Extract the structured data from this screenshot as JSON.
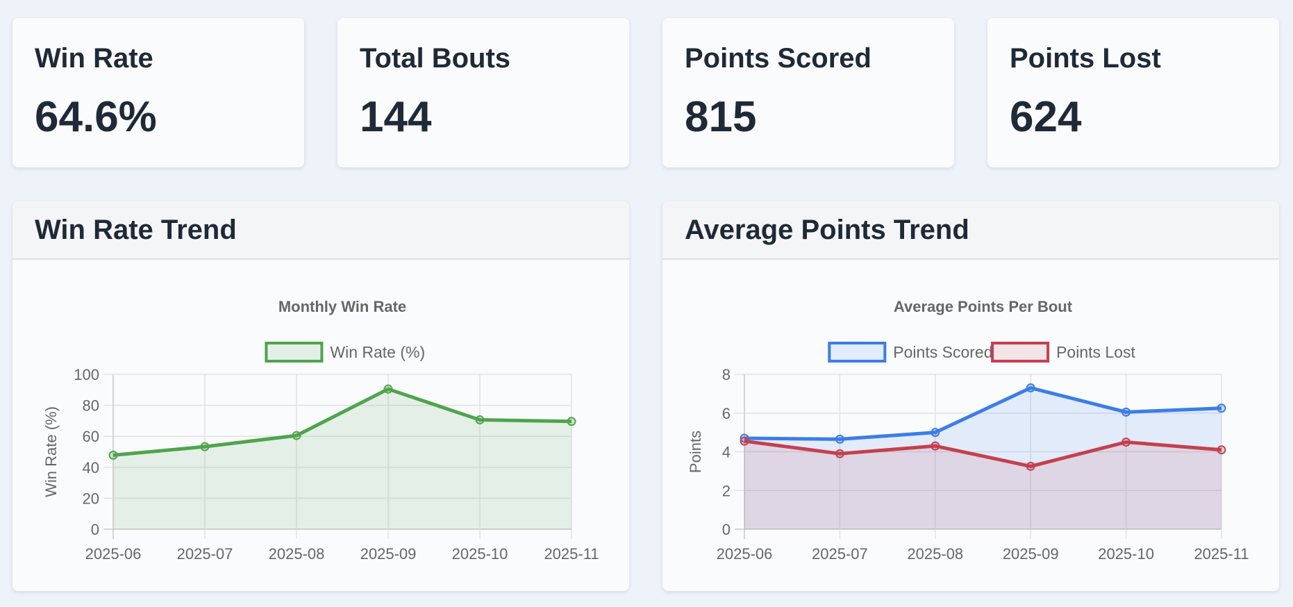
{
  "stats": [
    {
      "label": "Win Rate",
      "value": "64.6%"
    },
    {
      "label": "Total Bouts",
      "value": "144"
    },
    {
      "label": "Points Scored",
      "value": "815"
    },
    {
      "label": "Points Lost",
      "value": "624"
    }
  ],
  "panels": {
    "win_rate": {
      "header": "Win Rate Trend"
    },
    "avg_points": {
      "header": "Average Points Trend"
    }
  },
  "chart_data": [
    {
      "type": "area",
      "title": "Monthly Win Rate",
      "xlabel": "",
      "ylabel": "Win Rate (%)",
      "categories": [
        "2025-06",
        "2025-07",
        "2025-08",
        "2025-09",
        "2025-10",
        "2025-11"
      ],
      "ylim": [
        0,
        100
      ],
      "yticks": [
        0,
        20,
        40,
        60,
        80,
        100
      ],
      "grid": true,
      "legend": "top-center",
      "series": [
        {
          "name": "Win Rate (%)",
          "values": [
            47.8,
            53.3,
            60.5,
            90.5,
            70.6,
            69.6
          ],
          "color": "#4ea54b",
          "fill": "rgba(78,165,75,0.12)"
        }
      ]
    },
    {
      "type": "area",
      "title": "Average Points Per Bout",
      "xlabel": "",
      "ylabel": "Points",
      "categories": [
        "2025-06",
        "2025-07",
        "2025-08",
        "2025-09",
        "2025-10",
        "2025-11"
      ],
      "ylim": [
        0,
        8
      ],
      "yticks": [
        0,
        2,
        4,
        6,
        8
      ],
      "grid": true,
      "legend": "top-center",
      "series": [
        {
          "name": "Points Scored",
          "values": [
            4.7,
            4.65,
            5.0,
            7.3,
            6.05,
            6.25
          ],
          "color": "#3b7de9",
          "fill": "rgba(59,125,233,0.12)"
        },
        {
          "name": "Points Lost",
          "values": [
            4.55,
            3.9,
            4.3,
            3.25,
            4.5,
            4.1
          ],
          "color": "#c5404e",
          "fill": "rgba(197,64,78,0.12)"
        }
      ]
    }
  ]
}
